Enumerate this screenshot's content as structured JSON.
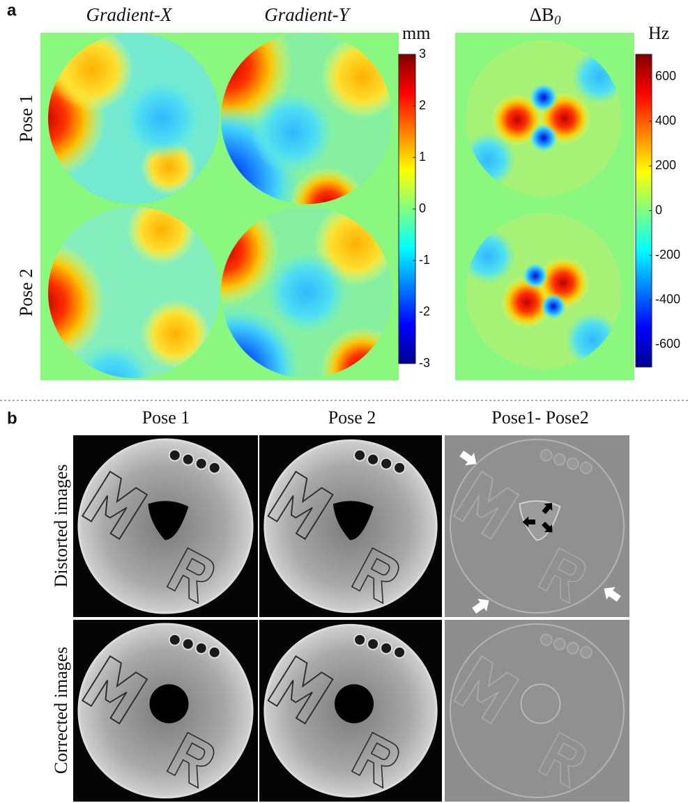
{
  "panel_a": {
    "label": "a",
    "titles": [
      "Gradient-X",
      "Gradient-Y"
    ],
    "b0_title": [
      "ΔB",
      "0"
    ],
    "rows": [
      "Pose 1",
      "Pose 2"
    ],
    "colorbars": [
      {
        "unit": "mm",
        "lim": [
          -3,
          3
        ],
        "ticks": [
          3,
          2,
          1,
          0,
          -1,
          -2,
          -3
        ]
      },
      {
        "unit": "Hz",
        "lim": [
          -700,
          700
        ],
        "ticks": [
          600,
          400,
          200,
          0,
          -200,
          -400,
          -600
        ]
      }
    ]
  },
  "panel_b": {
    "label": "b",
    "columns": [
      "Pose 1",
      "Pose 2",
      "Pose1- Pose2"
    ],
    "rows": [
      "Distorted images",
      "Corrected images"
    ]
  }
}
